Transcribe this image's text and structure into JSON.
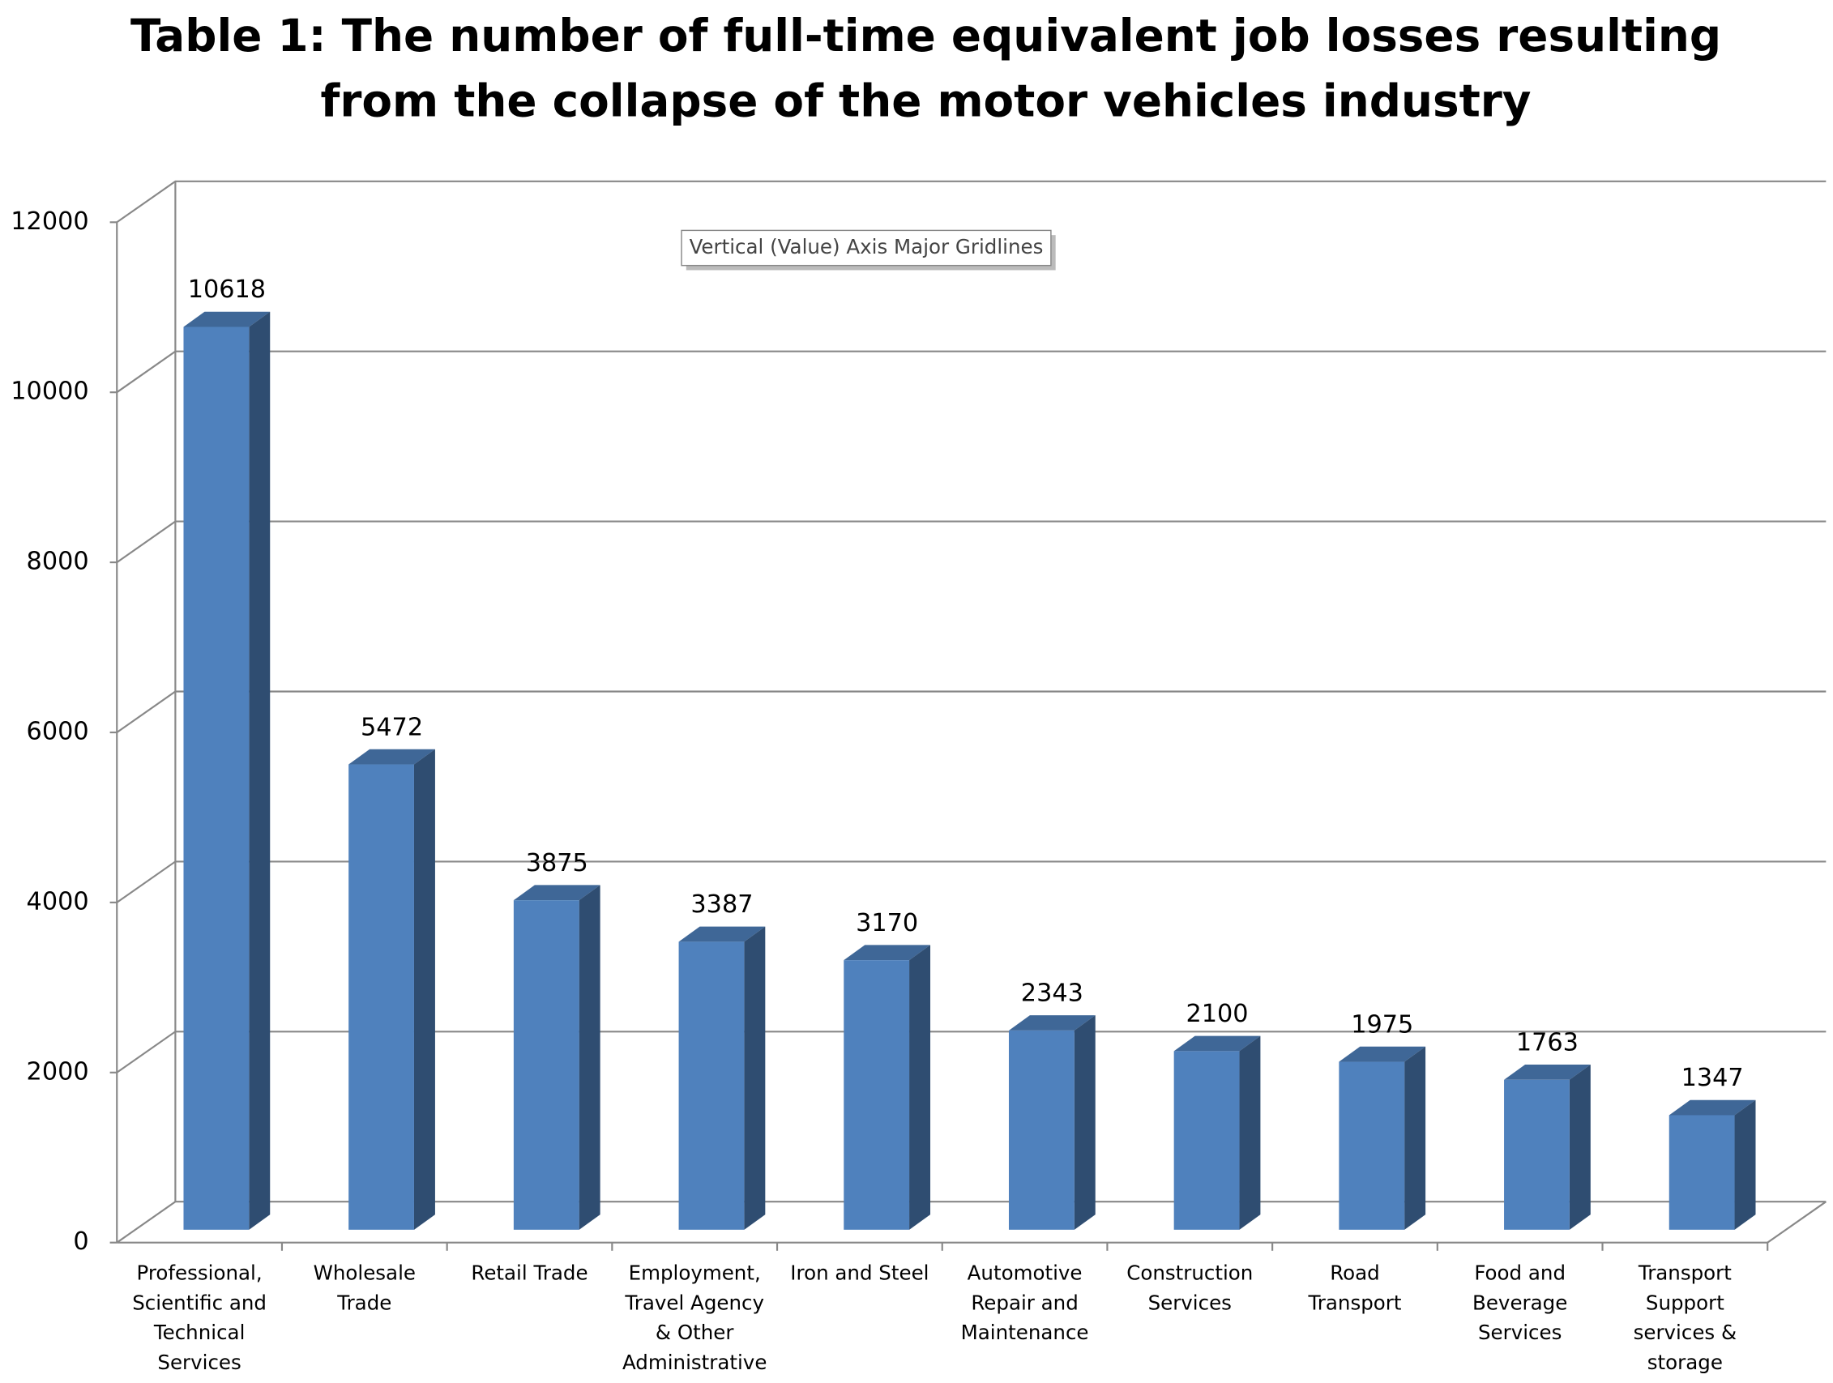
{
  "chart_data": {
    "type": "bar3d",
    "title": "Table 1: The number of full-time equivalent job losses resulting\nfrom the collapse of the motor vehicles industry",
    "annotation": "Vertical (Value) Axis Major Gridlines",
    "categories": [
      "Professional,\nScientific and\nTechnical\nServices",
      "Wholesale\nTrade",
      "Retail Trade",
      "Employment,\nTravel Agency\n& Other\nAdministrative",
      "Iron and Steel",
      "Automotive\nRepair and\nMaintenance",
      "Construction\nServices",
      "Road\nTransport",
      "Food and\nBeverage\nServices",
      "Transport\nSupport\nservices &\nstorage"
    ],
    "values": [
      10618,
      5472,
      3875,
      3387,
      3170,
      2343,
      2100,
      1975,
      1763,
      1347
    ],
    "color": "#4f81bd",
    "ylim": [
      0,
      12000
    ],
    "yticks": [
      0,
      2000,
      4000,
      6000,
      8000,
      10000,
      12000
    ],
    "grid": true
  }
}
